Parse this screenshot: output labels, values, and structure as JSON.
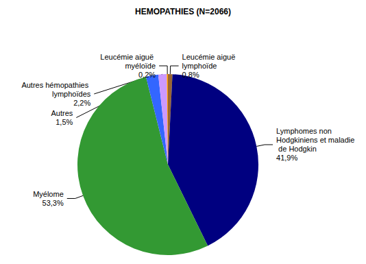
{
  "chart_data": {
    "type": "pie",
    "title": "HEMOPATHIES (N=2066)",
    "categories": [
      "Leucémie aiguë lymphoïde",
      "Lymphomes non Hodgkiniens et maladie de Hodgkin",
      "Myélome",
      "Autres hémopathies lymphoïdes",
      "Autres",
      "Leucémie aiguë myéloïde"
    ],
    "values": [
      0.8,
      41.9,
      53.3,
      2.2,
      1.5,
      0.2
    ],
    "value_labels": [
      "0,8%",
      "41,9%",
      "53,3%",
      "2,2%",
      "1,5%",
      "0,2%"
    ],
    "colors": [
      "#996633",
      "#000080",
      "#339933",
      "#3366ff",
      "#cc99ff",
      "#ff9900"
    ],
    "data_labels": true
  }
}
